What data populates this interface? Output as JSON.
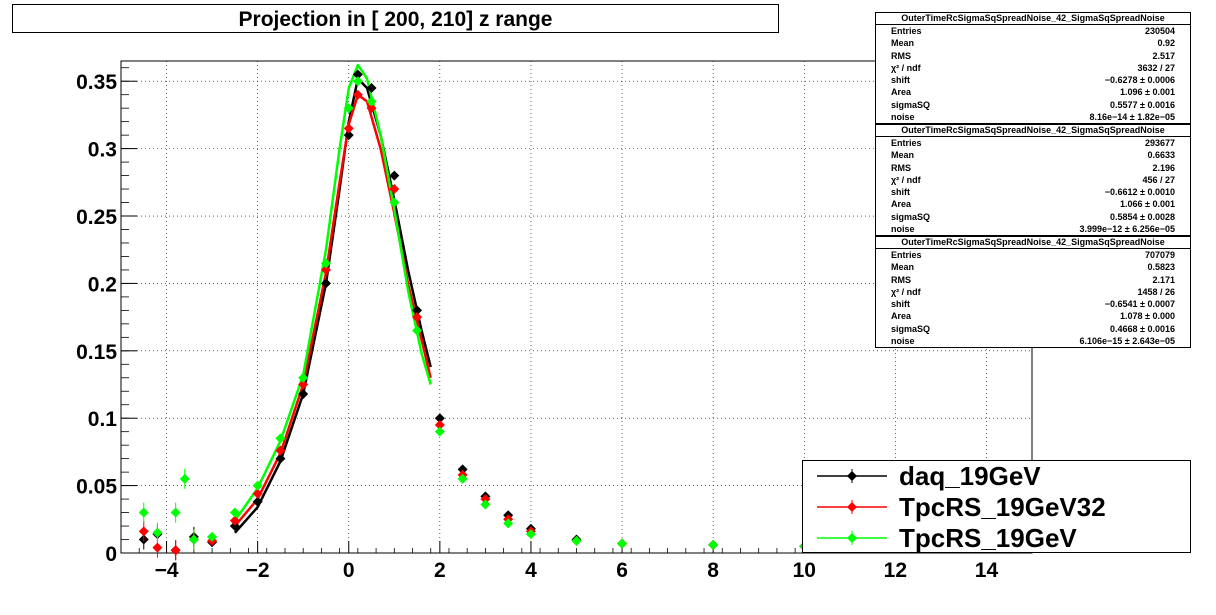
{
  "title": "Projection in [ 200, 210] z range",
  "chart_data": {
    "type": "scatter",
    "title": "Projection in [ 200, 210] z range",
    "xlim": [
      -5,
      15
    ],
    "ylim": [
      0,
      0.365
    ],
    "x_ticks": [
      -4,
      -2,
      0,
      2,
      4,
      6,
      8,
      10,
      12,
      14
    ],
    "x_tick_labels": [
      "−4",
      "−2",
      "0",
      "2",
      "4",
      "6",
      "8",
      "10",
      "12",
      "14"
    ],
    "y_ticks": [
      0,
      0.05,
      0.1,
      0.15,
      0.2,
      0.25,
      0.3,
      0.35
    ],
    "y_tick_labels": [
      "0",
      "0.05",
      "0.1",
      "0.15",
      "0.2",
      "0.25",
      "0.3",
      "0.35"
    ],
    "grid": true,
    "legend_placement": "bottom-right",
    "series": [
      {
        "name": "daq_19GeV",
        "color": "#000000",
        "x": [
          -4.5,
          -4.2,
          -3.8,
          -3.4,
          -3.0,
          -2.5,
          -2.0,
          -1.5,
          -1.0,
          -0.5,
          0.0,
          0.2,
          0.5,
          1.0,
          1.5,
          2.0,
          2.5,
          3.0,
          3.5,
          4.0,
          5.0,
          6.0,
          8.0,
          10.0
        ],
        "y": [
          0.01,
          0.014,
          0.002,
          0.012,
          0.008,
          0.02,
          0.038,
          0.07,
          0.118,
          0.2,
          0.31,
          0.355,
          0.345,
          0.28,
          0.18,
          0.1,
          0.062,
          0.042,
          0.028,
          0.018,
          0.01,
          0.007,
          0.006,
          0.005
        ]
      },
      {
        "name": "TpcRS_19GeV32",
        "color": "#ff0000",
        "x": [
          -4.5,
          -4.2,
          -3.8,
          -3.4,
          -3.0,
          -2.5,
          -2.0,
          -1.5,
          -1.0,
          -0.5,
          0.0,
          0.2,
          0.5,
          1.0,
          1.5,
          2.0,
          2.5,
          3.0,
          3.5,
          4.0,
          5.0,
          6.0,
          8.0,
          10.0
        ],
        "y": [
          0.016,
          0.004,
          0.002,
          0.01,
          0.009,
          0.024,
          0.044,
          0.076,
          0.125,
          0.21,
          0.315,
          0.34,
          0.33,
          0.27,
          0.175,
          0.095,
          0.058,
          0.04,
          0.025,
          0.016,
          0.009,
          0.007,
          0.006,
          0.005
        ]
      },
      {
        "name": "TpcRS_19GeV",
        "color": "#00ff00",
        "x": [
          -4.5,
          -4.2,
          -3.8,
          -3.6,
          -3.4,
          -3.0,
          -2.5,
          -2.0,
          -1.5,
          -1.0,
          -0.5,
          0.0,
          0.2,
          0.5,
          1.0,
          1.5,
          2.0,
          2.5,
          3.0,
          3.5,
          4.0,
          5.0,
          6.0,
          8.0,
          10.0
        ],
        "y": [
          0.03,
          0.015,
          0.03,
          0.055,
          0.01,
          0.012,
          0.03,
          0.05,
          0.085,
          0.13,
          0.215,
          0.33,
          0.35,
          0.335,
          0.26,
          0.165,
          0.09,
          0.055,
          0.036,
          0.022,
          0.014,
          0.009,
          0.007,
          0.006,
          0.005
        ]
      }
    ],
    "fits": [
      {
        "series": "daq_19GeV",
        "color": "#000000",
        "x": [
          -2.5,
          -2.0,
          -1.5,
          -1.0,
          -0.5,
          -0.2,
          0.0,
          0.2,
          0.4,
          0.7,
          1.0,
          1.3,
          1.6,
          1.8
        ],
        "y": [
          0.015,
          0.034,
          0.068,
          0.118,
          0.2,
          0.27,
          0.32,
          0.352,
          0.345,
          0.31,
          0.262,
          0.21,
          0.165,
          0.138
        ]
      },
      {
        "series": "TpcRS_19GeV32",
        "color": "#ff0000",
        "x": [
          -2.5,
          -2.0,
          -1.5,
          -1.0,
          -0.5,
          -0.2,
          0.0,
          0.2,
          0.4,
          0.7,
          1.0,
          1.3,
          1.6,
          1.8
        ],
        "y": [
          0.02,
          0.04,
          0.074,
          0.125,
          0.208,
          0.275,
          0.318,
          0.34,
          0.335,
          0.3,
          0.252,
          0.2,
          0.158,
          0.13
        ]
      },
      {
        "series": "TpcRS_19GeV",
        "color": "#00ff00",
        "x": [
          -2.5,
          -2.0,
          -1.5,
          -1.0,
          -0.5,
          -0.2,
          0.0,
          0.2,
          0.4,
          0.7,
          1.0,
          1.3,
          1.6,
          1.8
        ],
        "y": [
          0.024,
          0.048,
          0.083,
          0.132,
          0.225,
          0.3,
          0.345,
          0.362,
          0.352,
          0.31,
          0.255,
          0.195,
          0.148,
          0.125
        ]
      }
    ]
  },
  "stats": [
    {
      "name": "OuterTimeRcSigmaSqSpreadNoise_42_SigmaSqSpreadNoise",
      "rows": [
        {
          "label": "Entries",
          "value": "230504"
        },
        {
          "label": "Mean",
          "value": "0.92"
        },
        {
          "label": "RMS",
          "value": "2.517"
        },
        {
          "label": "χ² / ndf",
          "value": "3632 / 27"
        },
        {
          "label": "shift",
          "value": "−0.6278 ± 0.0006"
        },
        {
          "label": "Area",
          "value": "1.096 ± 0.001"
        },
        {
          "label": "sigmaSQ",
          "value": "0.5577 ± 0.0016"
        },
        {
          "label": "noise",
          "value": "8.16e−14 ± 1.82e−05"
        }
      ]
    },
    {
      "name": "OuterTimeRcSigmaSqSpreadNoise_42_SigmaSqSpreadNoise",
      "rows": [
        {
          "label": "Entries",
          "value": "293677"
        },
        {
          "label": "Mean",
          "value": "0.6633"
        },
        {
          "label": "RMS",
          "value": "2.196"
        },
        {
          "label": "χ² / ndf",
          "value": "456 / 27"
        },
        {
          "label": "shift",
          "value": "−0.6612 ± 0.0010"
        },
        {
          "label": "Area",
          "value": "1.066 ± 0.001"
        },
        {
          "label": "sigmaSQ",
          "value": "0.5854 ± 0.0028"
        },
        {
          "label": "noise",
          "value": "3.999e−12 ± 6.256e−05"
        }
      ]
    },
    {
      "name": "OuterTimeRcSigmaSqSpreadNoise_42_SigmaSqSpreadNoise",
      "rows": [
        {
          "label": "Entries",
          "value": "707079"
        },
        {
          "label": "Mean",
          "value": "0.5823"
        },
        {
          "label": "RMS",
          "value": "2.171"
        },
        {
          "label": "χ² / ndf",
          "value": "1458 / 26"
        },
        {
          "label": "shift",
          "value": "−0.6541 ± 0.0007"
        },
        {
          "label": "Area",
          "value": "1.078 ± 0.000"
        },
        {
          "label": "sigmaSQ",
          "value": "0.4668 ± 0.0016"
        },
        {
          "label": "noise",
          "value": "6.106e−15 ± 2.643e−05"
        }
      ]
    }
  ],
  "legend": [
    {
      "label": "daq_19GeV",
      "color": "#000000"
    },
    {
      "label": "TpcRS_19GeV32",
      "color": "#ff0000"
    },
    {
      "label": "TpcRS_19GeV",
      "color": "#00ff00"
    }
  ]
}
